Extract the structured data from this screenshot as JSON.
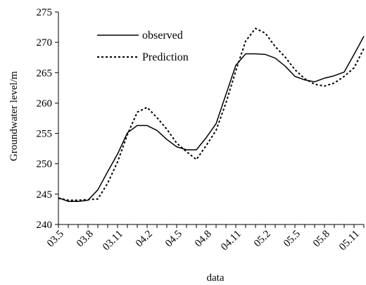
{
  "chart_data": {
    "type": "line",
    "xlabel": "data",
    "ylabel": "Groundwater level/m",
    "ylim": [
      240,
      275
    ],
    "yticks": [
      240,
      245,
      250,
      255,
      260,
      265,
      270,
      275
    ],
    "x_tick_labels": [
      "03.5",
      "03.8",
      "03.11",
      "04.2",
      "04.5",
      "04.8",
      "04.11",
      "05.2",
      "05.5",
      "05.8",
      "05.11"
    ],
    "x_tick_positions": [
      0,
      3,
      6,
      9,
      12,
      15,
      18,
      21,
      24,
      27,
      30
    ],
    "x_range": [
      0,
      31
    ],
    "grid": false,
    "legend": "upper-left",
    "series": [
      {
        "name": "observed",
        "style": "solid",
        "color": "#000000",
        "x": [
          0,
          1,
          2,
          3,
          4,
          5,
          6,
          7,
          8,
          9,
          10,
          11,
          12,
          13,
          14,
          15,
          16,
          17,
          18,
          19,
          20,
          21,
          22,
          23,
          24,
          25,
          26,
          27,
          28,
          29,
          30,
          31
        ],
        "values": [
          244.4,
          243.8,
          243.8,
          244.0,
          245.7,
          248.7,
          251.6,
          255.1,
          256.3,
          256.3,
          255.5,
          254.0,
          252.8,
          252.3,
          252.3,
          254.3,
          256.6,
          261.4,
          266.2,
          268.1,
          268.1,
          268.0,
          267.4,
          266.1,
          264.4,
          263.8,
          263.5,
          264.1,
          264.5,
          265.1,
          268.0,
          271.0
        ]
      },
      {
        "name": "Prediction",
        "style": "dashed",
        "color": "#000000",
        "x": [
          0,
          1,
          2,
          3,
          4,
          5,
          6,
          7,
          8,
          9,
          10,
          11,
          12,
          13,
          14,
          15,
          16,
          17,
          18,
          19,
          20,
          21,
          22,
          23,
          24,
          25,
          26,
          27,
          28,
          29,
          30,
          31
        ],
        "values": [
          244.3,
          244.0,
          244.0,
          244.1,
          244.2,
          246.8,
          250.3,
          254.8,
          258.5,
          259.3,
          257.6,
          255.7,
          253.4,
          252.0,
          250.7,
          253.0,
          255.5,
          260.0,
          265.3,
          270.2,
          272.3,
          271.5,
          269.3,
          267.6,
          265.5,
          264.0,
          263.1,
          262.8,
          263.3,
          264.4,
          265.8,
          269.0
        ]
      }
    ]
  }
}
